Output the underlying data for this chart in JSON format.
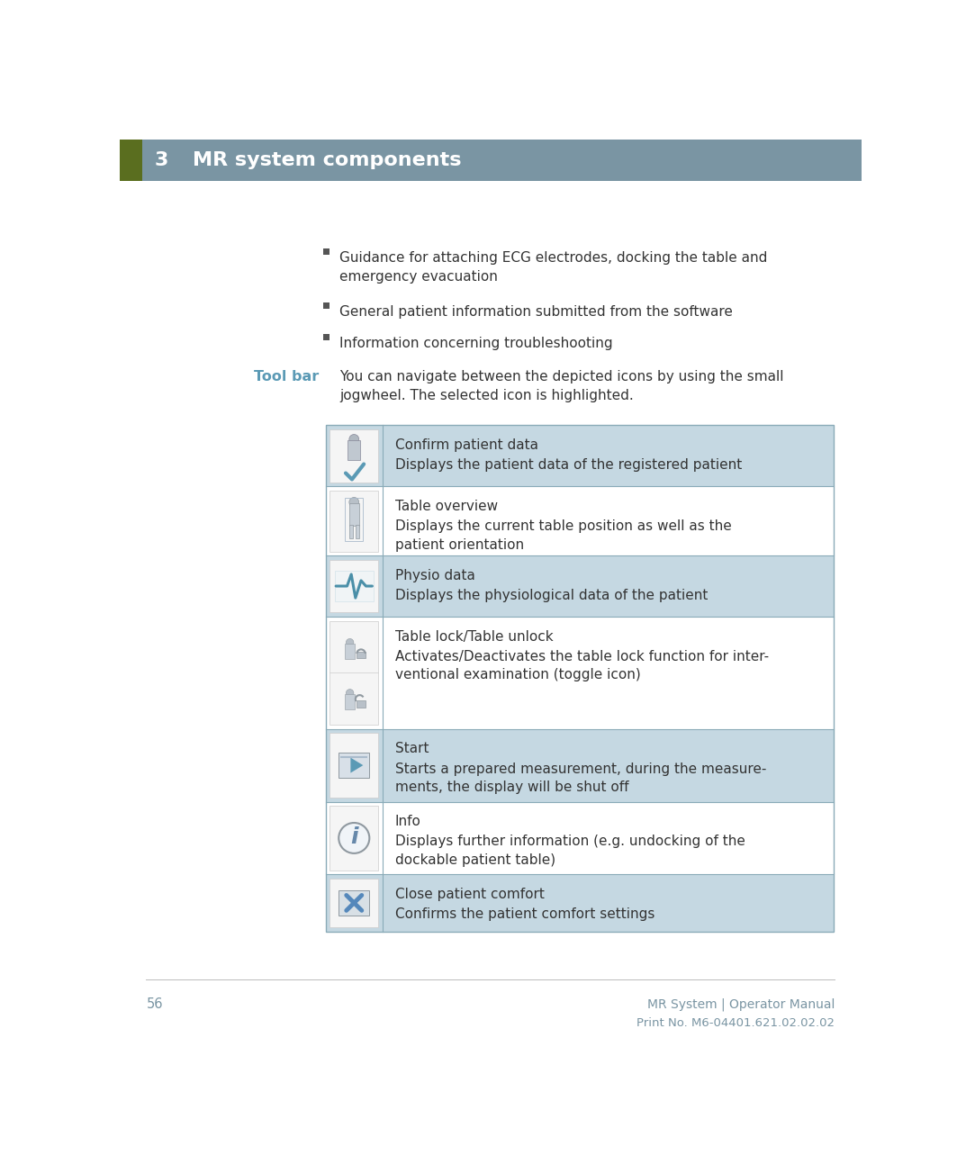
{
  "page_width": 10.63,
  "page_height": 12.93,
  "bg_color": "#ffffff",
  "header_bg": "#7a95a3",
  "header_green": "#5a6e1f",
  "header_text": "MR system components",
  "header_number": "3",
  "header_text_color": "#ffffff",
  "footer_page": "56",
  "footer_right1": "MR System | Operator Manual",
  "footer_right2": "Print No. M6-04401.621.02.02.02",
  "footer_color": "#7a95a3",
  "bullet_icon_color": "#555555",
  "toolbar_label_color": "#5b9ab5",
  "body_text_color": "#333333",
  "table_bg_dark": "#c5d8e2",
  "table_bg_light": "#ffffff",
  "table_border_color": "#8aabb8",
  "bullet_items": [
    "Guidance for attaching ECG electrodes, docking the table and\nemergency evacuation",
    "General patient information submitted from the software",
    "Information concerning troubleshooting"
  ],
  "toolbar_intro": "You can navigate between the depicted icons by using the small\njogwheel. The selected icon is highlighted.",
  "table_rows": [
    {
      "title": "Confirm patient data",
      "desc": "Displays the patient data of the registered patient",
      "bg": "#c5d8e2",
      "icon": "checkmark_person"
    },
    {
      "title": "Table overview",
      "desc": "Displays the current table position as well as the\npatient orientation",
      "bg": "#ffffff",
      "icon": "person_standing"
    },
    {
      "title": "Physio data",
      "desc": "Displays the physiological data of the patient",
      "bg": "#c5d8e2",
      "icon": "ecg_wave"
    },
    {
      "title": "Table lock/Table unlock",
      "desc": "Activates/Deactivates the table lock function for inter-\nventional examination (toggle icon)",
      "bg": "#ffffff",
      "icon": "lock_double"
    },
    {
      "title": "Start",
      "desc": "Starts a prepared measurement, during the measure-\nments, the display will be shut off",
      "bg": "#c5d8e2",
      "icon": "play_button"
    },
    {
      "title": "Info",
      "desc": "Displays further information (e.g. undocking of the\ndockable patient table)",
      "bg": "#ffffff",
      "icon": "info_circle"
    },
    {
      "title": "Close patient comfort",
      "desc": "Confirms the patient comfort settings",
      "bg": "#c5d8e2",
      "icon": "x_mark"
    }
  ],
  "row_heights": [
    0.88,
    1.0,
    0.88,
    1.62,
    1.05,
    1.05,
    0.82
  ]
}
